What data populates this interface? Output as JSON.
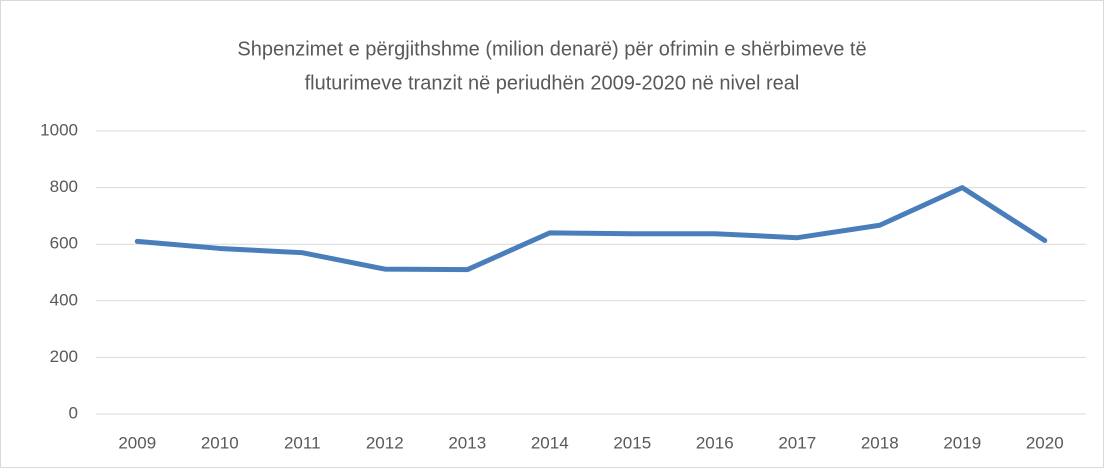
{
  "chart_data": {
    "type": "line",
    "title": [
      "Shpenzimet e përgjithshme (milion denarë) për ofrimin e shërbimeve të",
      "fluturimeve tranzit në periudhën 2009-2020 në nivel real"
    ],
    "categories": [
      "2009",
      "2010",
      "2011",
      "2012",
      "2013",
      "2014",
      "2015",
      "2016",
      "2017",
      "2018",
      "2019",
      "2020"
    ],
    "values": [
      610,
      585,
      570,
      512,
      510,
      640,
      637,
      637,
      623,
      667,
      800,
      613
    ],
    "color": "#4a7ebb",
    "ylim": [
      0,
      1000
    ],
    "yticks": [
      0,
      200,
      400,
      600,
      800,
      1000
    ],
    "grid": true
  }
}
